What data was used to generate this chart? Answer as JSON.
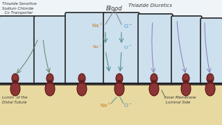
{
  "bg_color": "#eef4f8",
  "cell_color": "#cce0ee",
  "cell_border": "#222222",
  "lumen_color": "#e8d9a0",
  "transporter_color": "#8b3535",
  "transporter_border": "#5a1515",
  "text_color": "#333333",
  "na_color": "#c87820",
  "cl_color": "#5090c0",
  "arrow_green": "#608060",
  "arrow_purple": "#8878b8",
  "arrow_teal": "#509090",
  "label_transporter": "Thiazide Sensitive\nSodium Chloride\n  Co Transporter",
  "label_blood": "Blood",
  "label_thiazide": "Thiazide Diuretics",
  "label_lumen": "Lumin  of the\nDistal Tubule",
  "label_inner": "Inner Membrane\n Luminal Side"
}
